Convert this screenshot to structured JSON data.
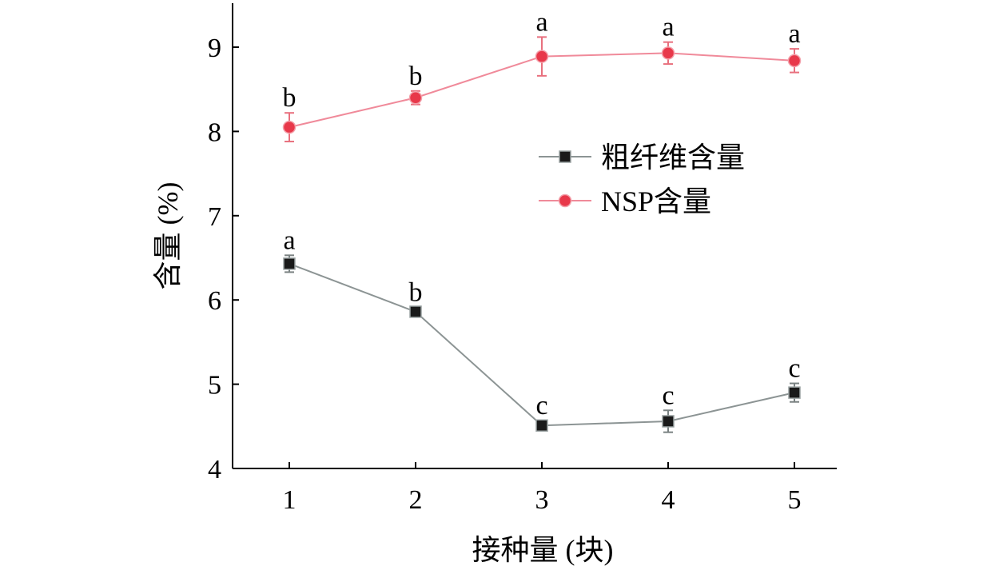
{
  "chart_data": {
    "type": "line",
    "xlabel": "接种量 (块)",
    "ylabel": "含量 (%)",
    "x": [
      1,
      2,
      3,
      4,
      5
    ],
    "xticks": [
      "1",
      "2",
      "3",
      "4",
      "5"
    ],
    "xlim": [
      0.55,
      6.05
    ],
    "ylim": [
      4,
      9.5
    ],
    "yticks": [
      "4",
      "5",
      "6",
      "7",
      "8",
      "9"
    ],
    "grid": false,
    "legend_position": "upper-right (inside plot)",
    "series": [
      {
        "name": "NSP含量",
        "color": "#e8384a",
        "line_color": "#f08a9a",
        "marker": "circle",
        "values": [
          8.05,
          8.4,
          8.89,
          8.93,
          8.84
        ],
        "errors": [
          0.17,
          0.08,
          0.23,
          0.13,
          0.14
        ],
        "labels": [
          "b",
          "b",
          "a",
          "a",
          "a"
        ]
      },
      {
        "name": "粗纤维含量",
        "color": "#1a1a1a",
        "line_color": "#8c9494",
        "marker": "square",
        "values": [
          6.43,
          5.86,
          4.51,
          4.56,
          4.9
        ],
        "errors": [
          0.1,
          0.05,
          0.06,
          0.13,
          0.11
        ],
        "labels": [
          "a",
          "b",
          "c",
          "c",
          "c"
        ]
      }
    ],
    "legend_order": [
      "粗纤维含量",
      "NSP含量"
    ]
  }
}
